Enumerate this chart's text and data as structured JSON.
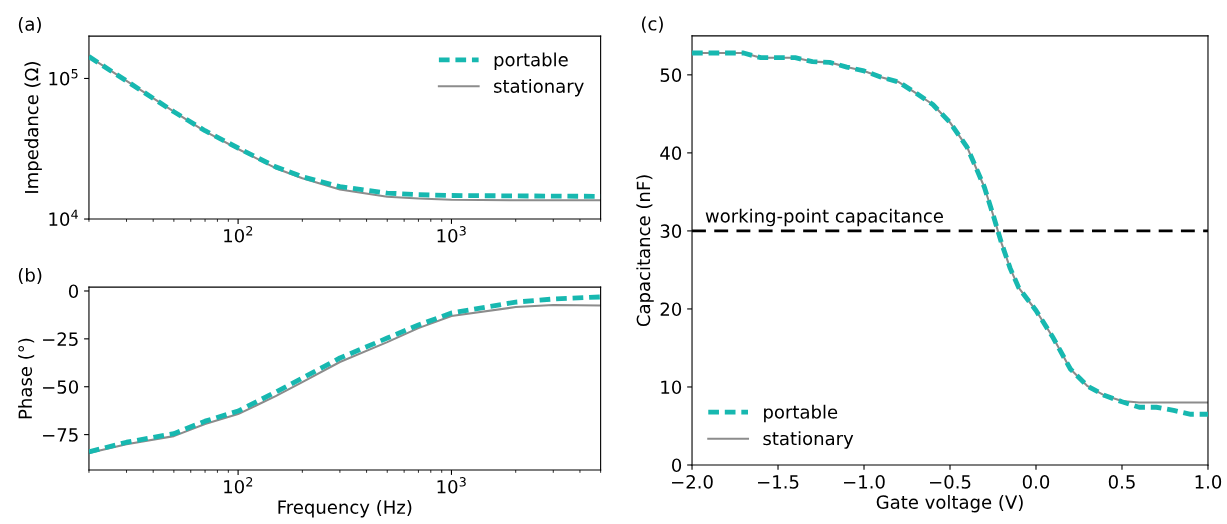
{
  "chart_data": [
    {
      "type": "line",
      "title": "(a)",
      "ylabel": "Impedance (Ω)",
      "log": "xy",
      "xlim": [
        20,
        5000
      ],
      "ylim": [
        10000,
        200000
      ],
      "xticks": [
        {
          "value": 100,
          "label": "10$^{2}$"
        },
        {
          "value": 1000,
          "label": "10$^{3}$"
        }
      ],
      "yticks": [
        {
          "value": 10000,
          "label": "10$^{4}$"
        },
        {
          "value": 100000,
          "label": "10$^{5}$"
        }
      ],
      "x": [
        20,
        30,
        50,
        70,
        100,
        150,
        200,
        300,
        500,
        700,
        1000,
        2000,
        5000
      ],
      "legend": "top right",
      "grid": false,
      "series": [
        {
          "name": "portable",
          "color": "#17b8b0",
          "line_style": "dashed",
          "values": [
            143000,
            96000,
            58000,
            42500,
            32000,
            23500,
            20000,
            17000,
            15300,
            14900,
            14700,
            14600,
            14500
          ]
        },
        {
          "name": "stationary",
          "color": "#8c8c8c",
          "line_style": "solid",
          "values": [
            143000,
            96000,
            58000,
            42000,
            31500,
            23000,
            19500,
            16200,
            14400,
            14000,
            13700,
            13600,
            13600
          ]
        }
      ]
    },
    {
      "type": "line",
      "title": "(b)",
      "xlabel": "Frequency (Hz)",
      "ylabel": "Phase (°)",
      "log": "x",
      "xlim": [
        20,
        5000
      ],
      "ylim": [
        -93.5,
        2
      ],
      "xticks": [
        {
          "value": 100,
          "label": "10$^{2}$"
        },
        {
          "value": 1000,
          "label": "10$^{3}$"
        }
      ],
      "yticks": [
        {
          "value": 0,
          "label": "0"
        },
        {
          "value": -25,
          "label": "−25"
        },
        {
          "value": -50,
          "label": "−50"
        },
        {
          "value": -75,
          "label": "−75"
        }
      ],
      "x": [
        20,
        30,
        50,
        70,
        100,
        150,
        200,
        300,
        500,
        700,
        1000,
        2000,
        3000,
        5000
      ],
      "grid": false,
      "series": [
        {
          "color": "#17b8b0",
          "line_style": "dashed",
          "values": [
            -84,
            -79,
            -74.5,
            -68,
            -62.7,
            -52.8,
            -45.5,
            -35,
            -24.6,
            -17.8,
            -11.5,
            -5.8,
            -4.2,
            -3.1
          ]
        },
        {
          "color": "#8c8c8c",
          "line_style": "solid",
          "values": [
            -84.6,
            -80,
            -75.8,
            -69.5,
            -64.3,
            -54.9,
            -47.6,
            -37.1,
            -26.7,
            -19.4,
            -13.1,
            -8.4,
            -7.3,
            -7.6
          ]
        }
      ]
    },
    {
      "type": "line",
      "title": "(c)",
      "xlabel": "Gate voltage (V)",
      "ylabel": "Capacitance (nF)",
      "xlim": [
        -2,
        1
      ],
      "ylim": [
        0,
        55
      ],
      "xticks": [
        {
          "value": -2,
          "label": "−2.0"
        },
        {
          "value": -1.5,
          "label": "−1.5"
        },
        {
          "value": -1,
          "label": "−1.0"
        },
        {
          "value": -0.5,
          "label": "−0.5"
        },
        {
          "value": 0,
          "label": "0.0"
        },
        {
          "value": 0.5,
          "label": "0.5"
        },
        {
          "value": 1,
          "label": "1.0"
        }
      ],
      "yticks": [
        0,
        10,
        20,
        30,
        40,
        50
      ],
      "legend": "bottom left",
      "grid": false,
      "x": [
        -2.0,
        -1.7,
        -1.6,
        -1.4,
        -1.3,
        -1.2,
        -1.1,
        -1.0,
        -0.9,
        -0.8,
        -0.7,
        -0.6,
        -0.5,
        -0.4,
        -0.3,
        -0.25,
        -0.2,
        -0.15,
        -0.1,
        0.0,
        0.1,
        0.2,
        0.3,
        0.4,
        0.5,
        0.6,
        0.7,
        0.8,
        0.9,
        1.0
      ],
      "ref_lines": [
        {
          "axis": "y",
          "value": 30,
          "label": "working-point capacitance",
          "color": "#000000",
          "line_style": "dashed"
        }
      ],
      "series": [
        {
          "name": "portable",
          "color": "#17b8b0",
          "line_style": "dashed",
          "values": [
            52.8,
            52.8,
            52.2,
            52.2,
            51.7,
            51.6,
            51.0,
            50.5,
            49.7,
            49.1,
            47.7,
            46.2,
            43.9,
            40.7,
            35.6,
            32.1,
            28.4,
            25.2,
            22.7,
            19.8,
            16.3,
            12.3,
            10.1,
            8.9,
            8.1,
            7.4,
            7.4,
            7.0,
            6.5,
            6.5
          ]
        },
        {
          "name": "stationary",
          "color": "#8c8c8c",
          "line_style": "solid",
          "values": [
            52.8,
            52.8,
            52.2,
            52.2,
            51.7,
            51.6,
            51.0,
            50.5,
            49.7,
            49.1,
            47.7,
            46.2,
            43.9,
            40.7,
            35.6,
            32.1,
            28.4,
            25.2,
            22.7,
            19.8,
            16.3,
            12.3,
            10.1,
            8.9,
            8.2,
            8.0,
            8.0,
            8.0,
            8.0,
            8.0
          ]
        }
      ]
    }
  ]
}
